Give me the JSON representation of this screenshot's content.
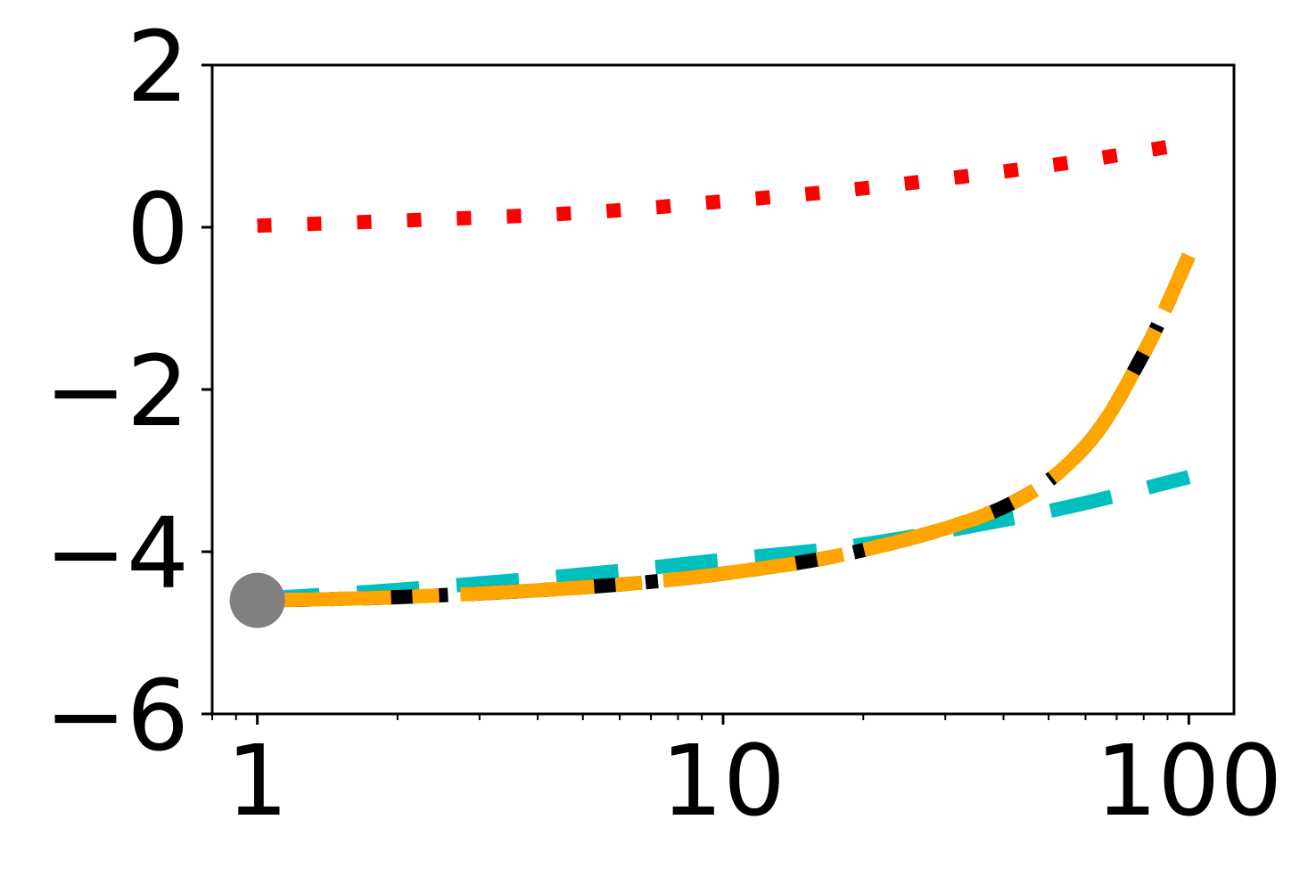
{
  "chart_data": {
    "type": "line",
    "title": "",
    "xlabel": "",
    "ylabel": "",
    "x_scale": "log",
    "xlim": [
      0.8,
      125
    ],
    "ylim": [
      -6,
      2
    ],
    "x_ticks": [
      {
        "value": 1,
        "label": "1"
      },
      {
        "value": 10,
        "label": "10"
      },
      {
        "value": 100,
        "label": "100"
      }
    ],
    "y_ticks": [
      {
        "value": 2,
        "label": "2"
      },
      {
        "value": 0,
        "label": "0"
      },
      {
        "value": -2,
        "label": "−2"
      },
      {
        "value": -4,
        "label": "−4"
      },
      {
        "value": -6,
        "label": "−6"
      }
    ],
    "grid": false,
    "legend": "none",
    "series": [
      {
        "color": "#ff0000",
        "style": "dotted",
        "x": [
          1,
          2,
          5,
          10,
          20,
          50,
          90
        ],
        "y": [
          0.02,
          0.08,
          0.18,
          0.32,
          0.48,
          0.76,
          0.99
        ]
      },
      {
        "color": "#00bfbf",
        "style": "dashed",
        "x": [
          1,
          2,
          5,
          10,
          20,
          50,
          100
        ],
        "y": [
          -4.58,
          -4.47,
          -4.28,
          -4.1,
          -3.91,
          -3.5,
          -3.08
        ]
      },
      {
        "color": "#000000",
        "style": "dashdot",
        "x": [
          1,
          2,
          5,
          10,
          20,
          40,
          60,
          80,
          100
        ],
        "y": [
          -4.6,
          -4.56,
          -4.44,
          -4.27,
          -3.98,
          -3.45,
          -2.7,
          -1.55,
          -0.35
        ]
      },
      {
        "color": "#ffa500",
        "style": "solid-dashed",
        "x": [
          1,
          2,
          5,
          10,
          20,
          40,
          60,
          80,
          100
        ],
        "y": [
          -4.6,
          -4.56,
          -4.44,
          -4.27,
          -3.98,
          -3.45,
          -2.7,
          -1.55,
          -0.35
        ]
      }
    ],
    "marker": {
      "x": 1,
      "y": -4.6,
      "color": "#808080"
    }
  }
}
